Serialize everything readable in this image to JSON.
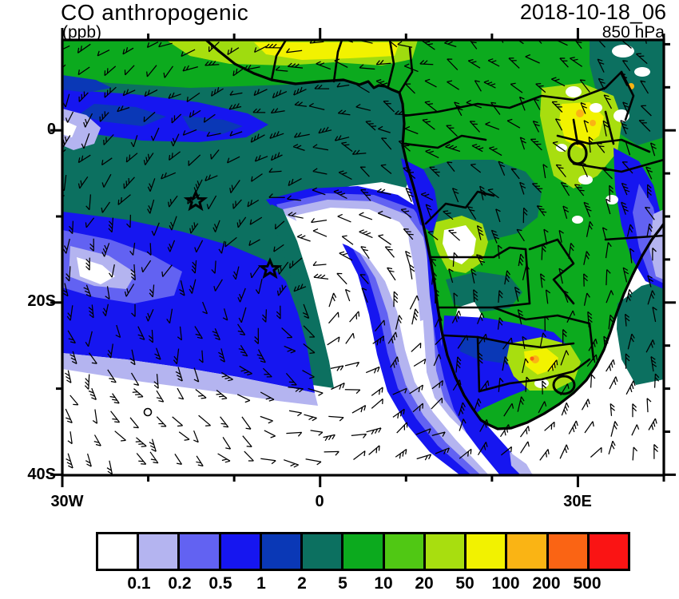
{
  "header": {
    "title": "CO anthropogenic",
    "units_label": "(ppb)",
    "datetime": "2018-10-18_06",
    "level_label": "850 hPa"
  },
  "axes": {
    "y_labels": [
      "0",
      "20S",
      "40S"
    ],
    "x_labels": [
      "30W",
      "0",
      "30E"
    ]
  },
  "colorbar": {
    "labels": [
      "0.1",
      "0.2",
      "0.5",
      "1",
      "2",
      "5",
      "10",
      "20",
      "50",
      "100",
      "200",
      "500"
    ],
    "colors": [
      "#ffffff",
      "#b4b4f0",
      "#6262f2",
      "#1616f0",
      "#0a38b6",
      "#0c7060",
      "#0caa1e",
      "#50c814",
      "#a8de0f",
      "#f2f200",
      "#fab414",
      "#fa6414",
      "#fa1414"
    ]
  },
  "chart_data": {
    "type": "heatmap",
    "title": "CO anthropogenic",
    "units": "ppb",
    "valid_datetime": "2018-10-18_06",
    "pressure_level": "850 hPa",
    "region": "Southern Africa and South Atlantic",
    "lon_range_deg": [
      -30,
      40
    ],
    "lat_range_deg": [
      -40,
      10.7
    ],
    "x_tick_labels": [
      "30W",
      "0",
      "30E"
    ],
    "y_tick_labels": [
      "0",
      "20S",
      "40S"
    ],
    "contour_levels_ppb": [
      0.1,
      0.2,
      0.5,
      1,
      2,
      5,
      10,
      20,
      50,
      100,
      200,
      500
    ],
    "palette": [
      "#ffffff",
      "#b4b4f0",
      "#6262f2",
      "#1616f0",
      "#0a38b6",
      "#0c7060",
      "#0caa1e",
      "#50c814",
      "#a8de0f",
      "#f2f200",
      "#fab414",
      "#fa6414",
      "#fa1414"
    ],
    "legend_position": "bottom",
    "grid": false,
    "overlays": [
      "wind barbs",
      "coastlines",
      "country borders",
      "star markers",
      "calm-wind circle"
    ],
    "star_markers_lonlat": [
      [
        -14.4,
        -8.4
      ],
      [
        -5.8,
        -16.3
      ]
    ],
    "features": [
      "high CO plume (2-20 ppb) over Gulf of Guinea and tropical Atlantic",
      "50-100 ppb band over Sahel coast and East Africa",
      "clean air (<0.1 ppb) tongue wrapping into South Atlantic anticyclone",
      "100-500+ ppb hotspot over South African Highveld"
    ]
  }
}
